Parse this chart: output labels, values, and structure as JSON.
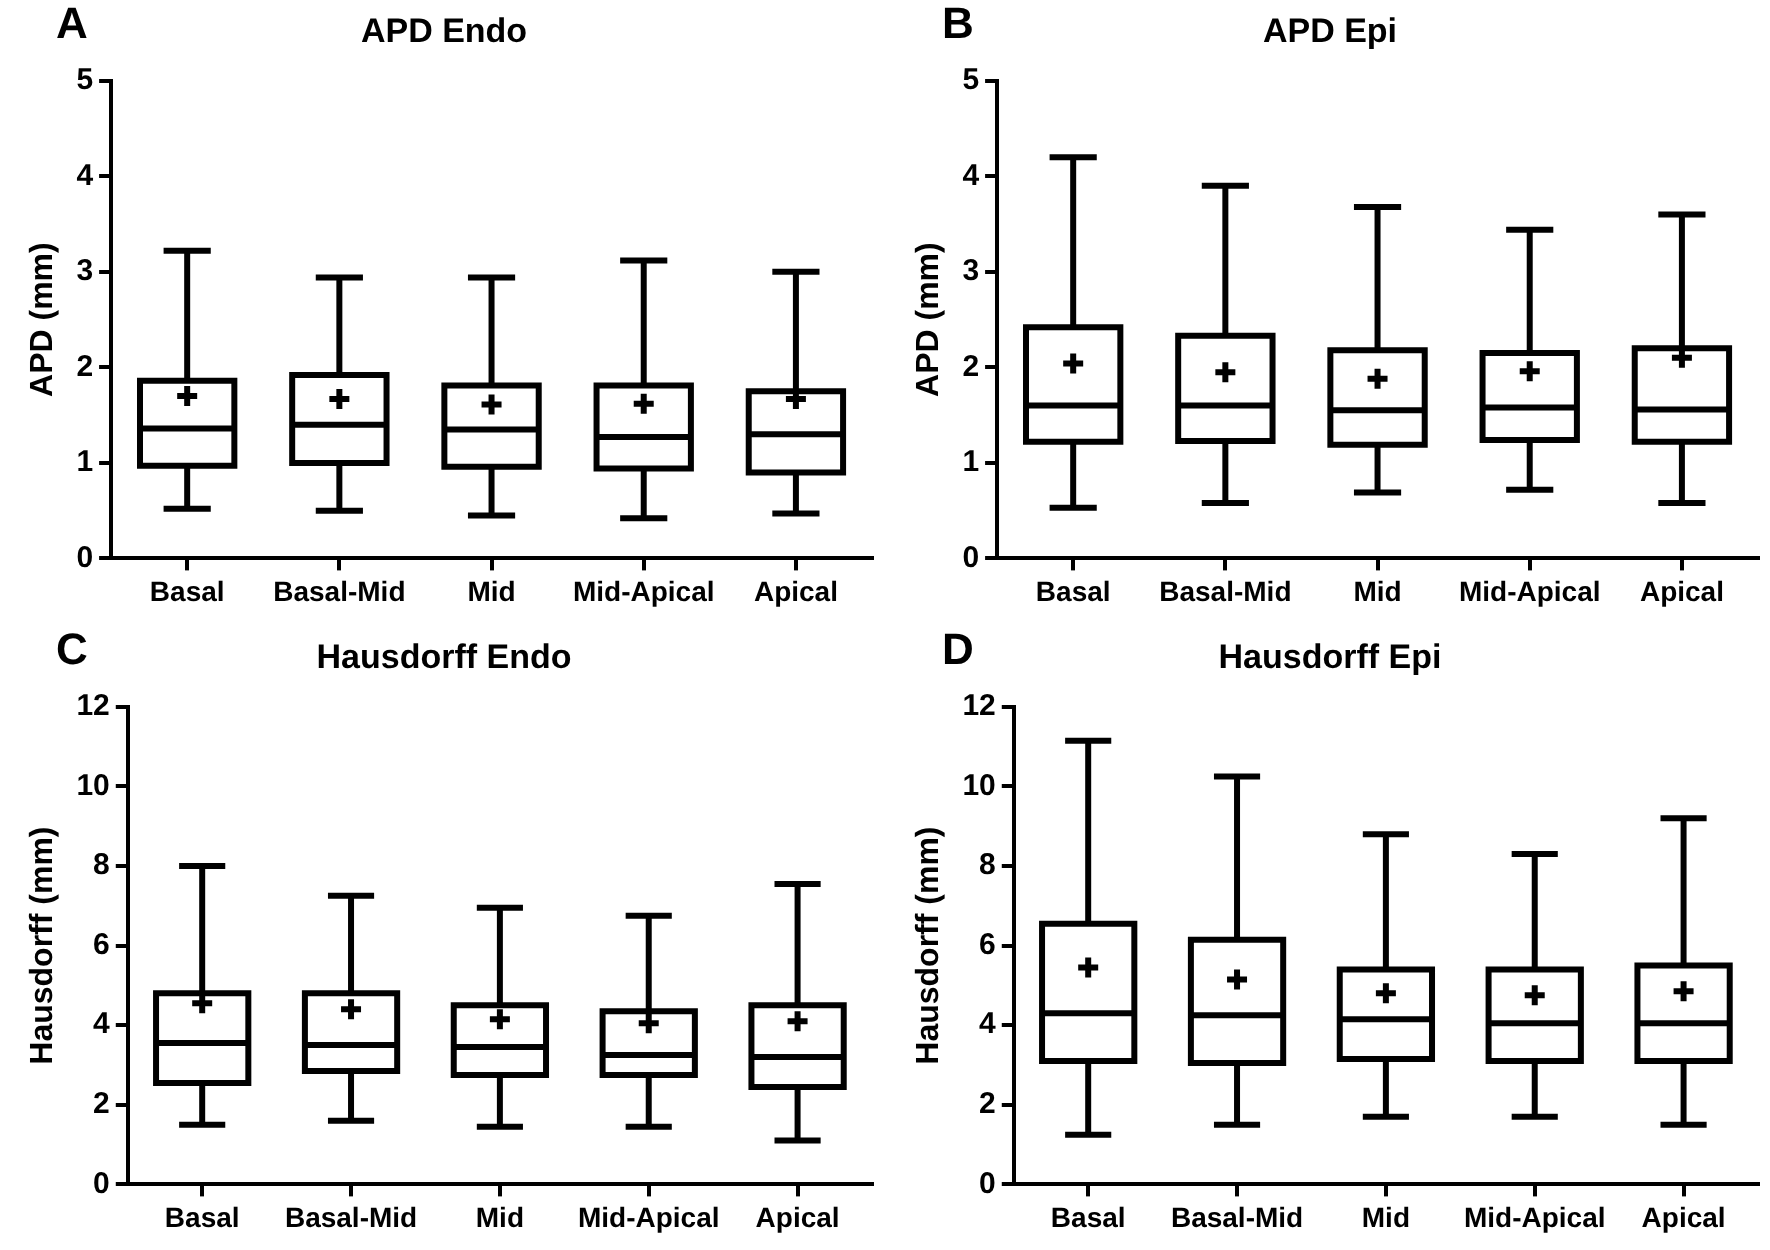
{
  "chart_data": [
    {
      "type": "box",
      "title": "APD Endo",
      "annotations": [
        "A"
      ],
      "ylabel": "APD (mm)",
      "categories": [
        "Basal",
        "Basal-Mid",
        "Mid",
        "Mid-Apical",
        "Apical"
      ],
      "ylim": [
        0,
        5
      ],
      "yticks": [
        0,
        1,
        2,
        3,
        4,
        5
      ],
      "grid": false,
      "legend": false,
      "series": [
        {
          "color": "#000000",
          "boxes": [
            {
              "low": 0.52,
              "q1": 0.97,
              "median": 1.36,
              "q3": 1.86,
              "high": 3.22,
              "mean": 1.7
            },
            {
              "low": 0.5,
              "q1": 1.0,
              "median": 1.4,
              "q3": 1.92,
              "high": 2.94,
              "mean": 1.67
            },
            {
              "low": 0.45,
              "q1": 0.96,
              "median": 1.35,
              "q3": 1.81,
              "high": 2.94,
              "mean": 1.61
            },
            {
              "low": 0.42,
              "q1": 0.94,
              "median": 1.27,
              "q3": 1.81,
              "high": 3.12,
              "mean": 1.62
            },
            {
              "low": 0.47,
              "q1": 0.9,
              "median": 1.3,
              "q3": 1.75,
              "high": 3.0,
              "mean": 1.67
            }
          ]
        }
      ]
    },
    {
      "type": "box",
      "title": "APD Epi",
      "annotations": [
        "B"
      ],
      "ylabel": "APD (mm)",
      "categories": [
        "Basal",
        "Basal-Mid",
        "Mid",
        "Mid-Apical",
        "Apical"
      ],
      "ylim": [
        0,
        5
      ],
      "yticks": [
        0,
        1,
        2,
        3,
        4,
        5
      ],
      "grid": false,
      "legend": false,
      "series": [
        {
          "color": "#000000",
          "boxes": [
            {
              "low": 0.53,
              "q1": 1.22,
              "median": 1.6,
              "q3": 2.42,
              "high": 4.2,
              "mean": 2.04
            },
            {
              "low": 0.58,
              "q1": 1.23,
              "median": 1.6,
              "q3": 2.33,
              "high": 3.9,
              "mean": 1.95
            },
            {
              "low": 0.69,
              "q1": 1.19,
              "median": 1.55,
              "q3": 2.18,
              "high": 3.68,
              "mean": 1.88
            },
            {
              "low": 0.72,
              "q1": 1.24,
              "median": 1.58,
              "q3": 2.15,
              "high": 3.44,
              "mean": 1.96
            },
            {
              "low": 0.58,
              "q1": 1.22,
              "median": 1.56,
              "q3": 2.2,
              "high": 3.6,
              "mean": 2.1
            }
          ]
        }
      ]
    },
    {
      "type": "box",
      "title": "Hausdorff Endo",
      "annotations": [
        "C"
      ],
      "ylabel": "Hausdorff (mm)",
      "categories": [
        "Basal",
        "Basal-Mid",
        "Mid",
        "Mid-Apical",
        "Apical"
      ],
      "ylim": [
        0,
        12
      ],
      "yticks": [
        0,
        2,
        4,
        6,
        8,
        10,
        12
      ],
      "grid": false,
      "legend": false,
      "series": [
        {
          "color": "#000000",
          "boxes": [
            {
              "low": 1.5,
              "q1": 2.55,
              "median": 3.55,
              "q3": 4.8,
              "high": 8.0,
              "mean": 4.55
            },
            {
              "low": 1.6,
              "q1": 2.85,
              "median": 3.5,
              "q3": 4.8,
              "high": 7.25,
              "mean": 4.4
            },
            {
              "low": 1.45,
              "q1": 2.75,
              "median": 3.45,
              "q3": 4.5,
              "high": 6.95,
              "mean": 4.15
            },
            {
              "low": 1.45,
              "q1": 2.75,
              "median": 3.25,
              "q3": 4.35,
              "high": 6.75,
              "mean": 4.05
            },
            {
              "low": 1.1,
              "q1": 2.45,
              "median": 3.2,
              "q3": 4.5,
              "high": 7.55,
              "mean": 4.1
            }
          ]
        }
      ]
    },
    {
      "type": "box",
      "title": "Hausdorff Epi",
      "annotations": [
        "D"
      ],
      "ylabel": "Hausdorff (mm)",
      "categories": [
        "Basal",
        "Basal-Mid",
        "Mid",
        "Mid-Apical",
        "Apical"
      ],
      "ylim": [
        0,
        12
      ],
      "yticks": [
        0,
        2,
        4,
        6,
        8,
        10,
        12
      ],
      "grid": false,
      "legend": false,
      "series": [
        {
          "color": "#000000",
          "boxes": [
            {
              "low": 1.25,
              "q1": 3.1,
              "median": 4.3,
              "q3": 6.55,
              "high": 11.15,
              "mean": 5.45
            },
            {
              "low": 1.5,
              "q1": 3.05,
              "median": 4.25,
              "q3": 6.15,
              "high": 10.25,
              "mean": 5.15
            },
            {
              "low": 1.7,
              "q1": 3.15,
              "median": 4.15,
              "q3": 5.4,
              "high": 8.8,
              "mean": 4.8
            },
            {
              "low": 1.7,
              "q1": 3.1,
              "median": 4.05,
              "q3": 5.4,
              "high": 8.3,
              "mean": 4.75
            },
            {
              "low": 1.5,
              "q1": 3.1,
              "median": 4.05,
              "q3": 5.5,
              "high": 9.2,
              "mean": 4.85
            }
          ]
        }
      ]
    }
  ]
}
